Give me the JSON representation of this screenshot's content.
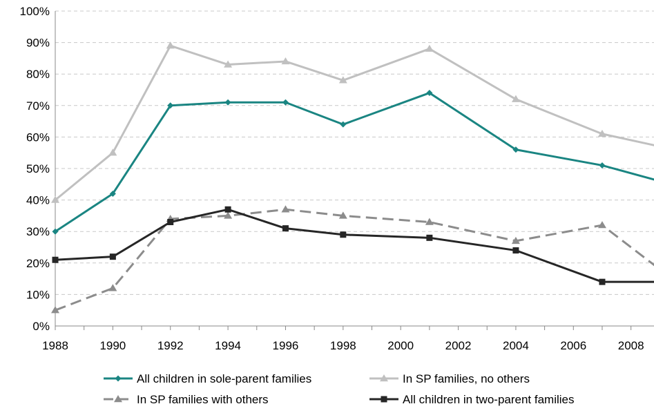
{
  "chart_data": {
    "type": "line",
    "title": "",
    "xlabel": "",
    "ylabel": "",
    "x_ticks": [
      "1988",
      "1990",
      "1992",
      "1994",
      "1996",
      "1998",
      "2000",
      "2002",
      "2004",
      "2006",
      "2008"
    ],
    "y_ticks": [
      "0%",
      "10%",
      "20%",
      "30%",
      "40%",
      "50%",
      "60%",
      "70%",
      "80%",
      "90%",
      "100%"
    ],
    "xlim": [
      1988,
      2008.8
    ],
    "ylim": [
      0,
      100
    ],
    "grid": true,
    "legend_position": "bottom",
    "series": [
      {
        "name": "All children in sole-parent families",
        "color": "#1a8582",
        "marker": "diamond",
        "dash": "solid",
        "x": [
          1988,
          1990,
          1992,
          1994,
          1996,
          1998,
          2001,
          2004,
          2007,
          2009
        ],
        "values": [
          30,
          42,
          70,
          71,
          71,
          64,
          74,
          56,
          51,
          46
        ]
      },
      {
        "name": "In SP families, no others",
        "color": "#c0c0c0",
        "marker": "triangle",
        "dash": "solid",
        "x": [
          1988,
          1990,
          1992,
          1994,
          1996,
          1998,
          2001,
          2004,
          2007,
          2009
        ],
        "values": [
          40,
          55,
          89,
          83,
          84,
          78,
          88,
          72,
          61,
          57
        ]
      },
      {
        "name": "In SP families with others",
        "color": "#8c8c8c",
        "marker": "triangle",
        "dash": "dashed",
        "x": [
          1988,
          1990,
          1992,
          1994,
          1996,
          1998,
          2001,
          2004,
          2007,
          2009
        ],
        "values": [
          5,
          12,
          34,
          35,
          37,
          35,
          33,
          27,
          32,
          18
        ]
      },
      {
        "name": "All children in two-parent families",
        "color": "#262626",
        "marker": "square",
        "dash": "solid",
        "x": [
          1988,
          1990,
          1992,
          1994,
          1996,
          1998,
          2001,
          2004,
          2007,
          2009
        ],
        "values": [
          21,
          22,
          33,
          37,
          31,
          29,
          28,
          24,
          14,
          14
        ]
      }
    ]
  }
}
